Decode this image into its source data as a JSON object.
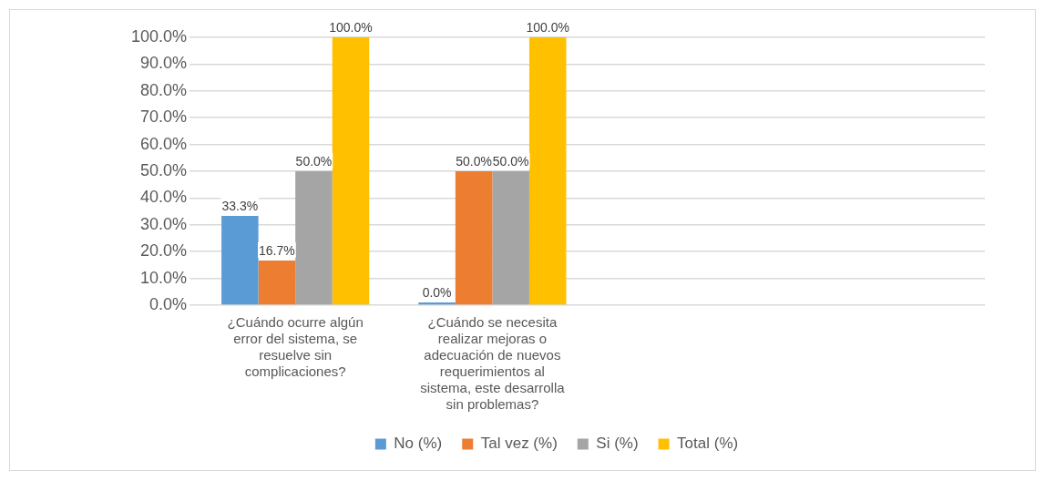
{
  "chart_data": {
    "type": "bar",
    "categories": [
      "¿Cuándo ocurre algún error del sistema, se resuelve sin complicaciones?",
      "¿Cuándo se necesita realizar mejoras o adecuación de nuevos requerimientos al sistema, este desarrolla sin problemas?",
      null,
      null
    ],
    "series": [
      {
        "name": "No (%)",
        "color": "#5b9bd5",
        "values": [
          33.3,
          0,
          null,
          null
        ],
        "value_labels": [
          "33.3%",
          "0.0%",
          null,
          null
        ]
      },
      {
        "name": "Tal vez (%)",
        "color": "#ed7d31",
        "values": [
          16.7,
          50,
          null,
          null
        ],
        "value_labels": [
          "16.7%",
          "50.0%",
          null,
          null
        ]
      },
      {
        "name": "Si (%)",
        "color": "#a5a5a5",
        "values": [
          50,
          50,
          null,
          null
        ],
        "value_labels": [
          "50.0%",
          "50.0%",
          null,
          null
        ]
      },
      {
        "name": "Total (%)",
        "color": "#ffc000",
        "values": [
          100,
          100,
          null,
          null
        ],
        "value_labels": [
          "100.0%",
          "100.0%",
          null,
          null
        ]
      }
    ],
    "ylim": [
      0,
      100
    ],
    "yticks": [
      {
        "value": 0,
        "label": "0.0%"
      },
      {
        "value": 10,
        "label": "10.0%"
      },
      {
        "value": 20,
        "label": "20.0%"
      },
      {
        "value": 30,
        "label": "30.0%"
      },
      {
        "value": 40,
        "label": "40.0%"
      },
      {
        "value": 50,
        "label": "50.0%"
      },
      {
        "value": 60,
        "label": "60.0%"
      },
      {
        "value": 70,
        "label": "70.0%"
      },
      {
        "value": 80,
        "label": "80.0%"
      },
      {
        "value": 90,
        "label": "90.0%"
      },
      {
        "value": 100,
        "label": "100.0%"
      }
    ],
    "grid": "y",
    "legend": "bottom"
  }
}
